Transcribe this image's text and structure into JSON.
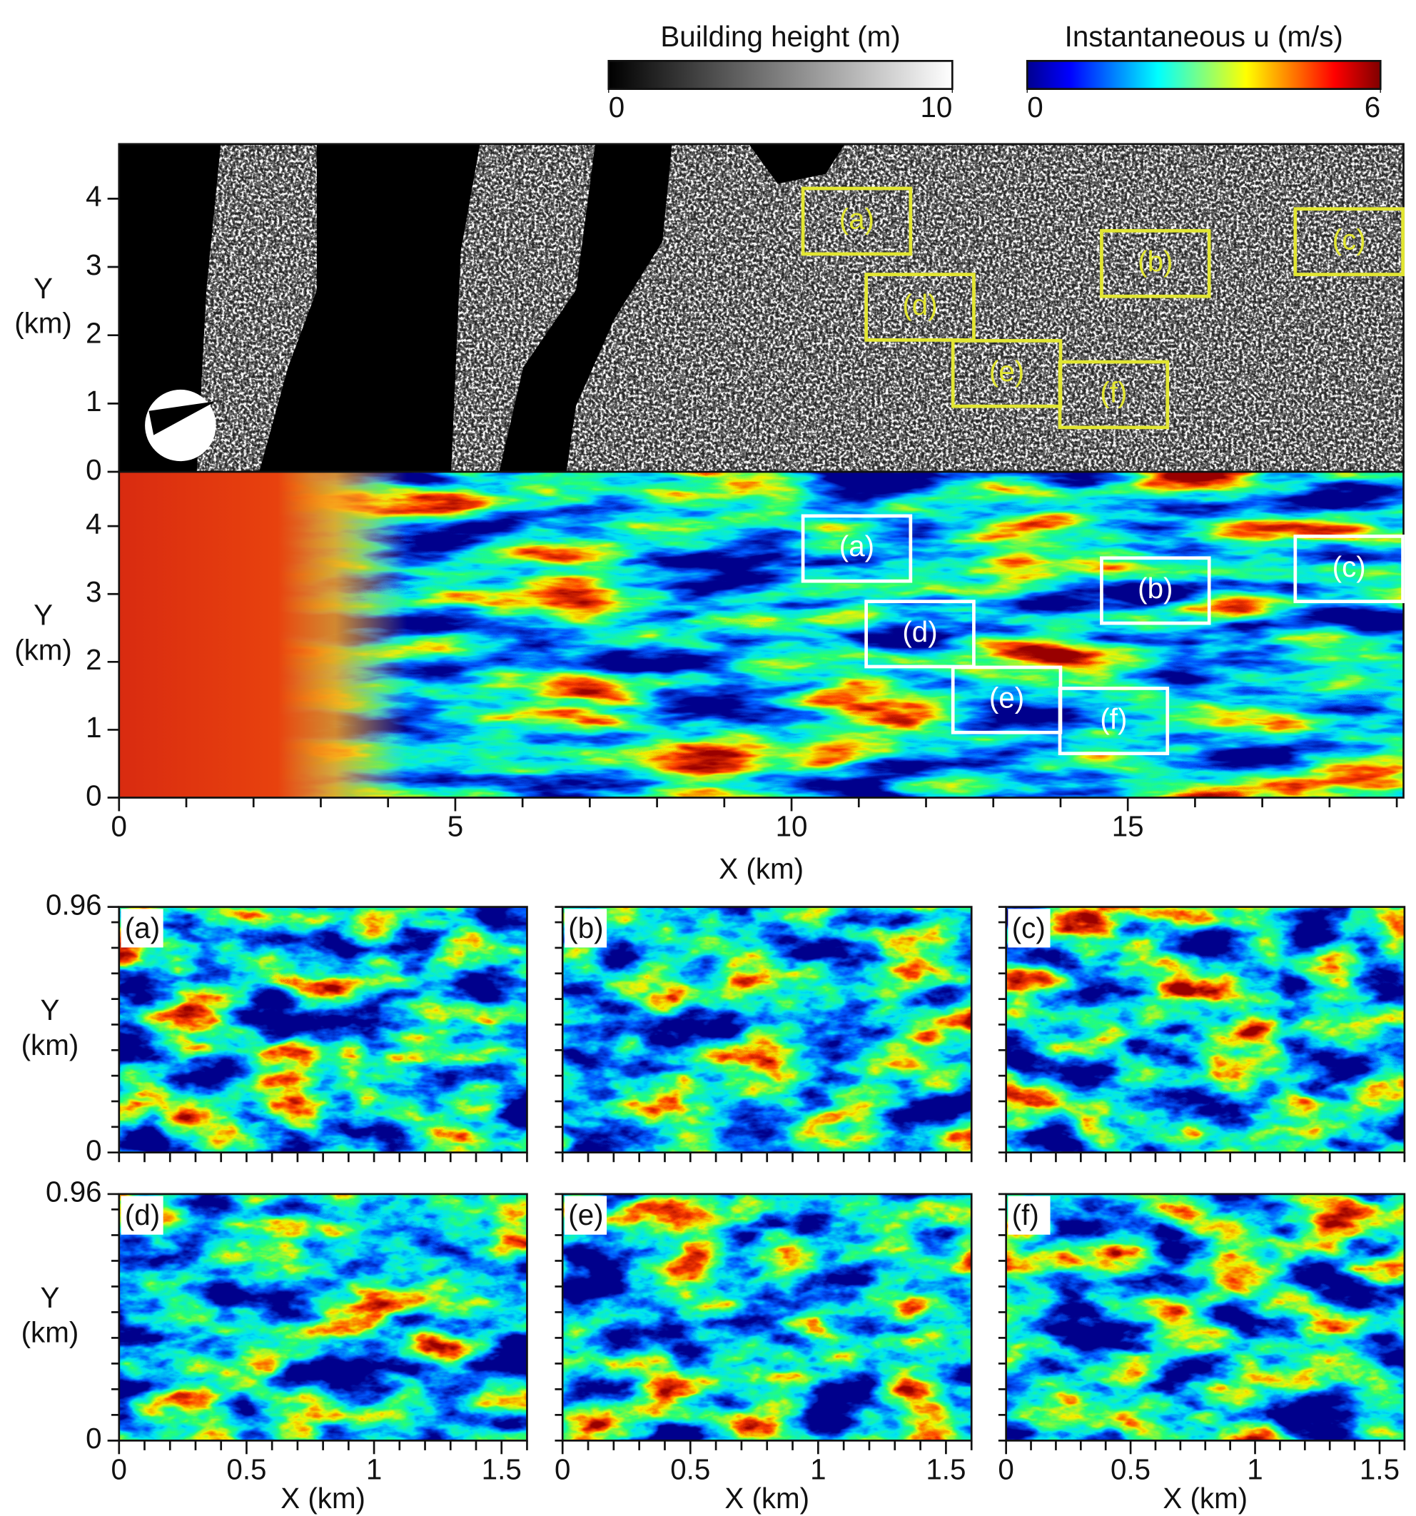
{
  "colorbars": [
    {
      "title": "Building height (m)",
      "lim": [
        0,
        10
      ],
      "ticks": [
        0,
        10
      ],
      "colormap": "gray"
    },
    {
      "title": "Instantaneous u (m/s)",
      "lim": [
        0,
        6
      ],
      "ticks": [
        0,
        6
      ],
      "colormap": "jet"
    }
  ],
  "chart_data": [
    {
      "type": "heatmap",
      "colormap": "gray",
      "ylabel": [
        "Y",
        "(km)"
      ],
      "xlim": [
        0,
        19.1
      ],
      "ylim": [
        0,
        4.8
      ],
      "yticks": [
        0,
        1,
        2,
        3,
        4
      ],
      "region_color": "#e2e632",
      "regions": [
        {
          "label": "(a)",
          "x": 10.17,
          "y": 3.19
        },
        {
          "label": "(b)",
          "x": 14.61,
          "y": 2.57
        },
        {
          "label": "(c)",
          "x": 17.49,
          "y": 2.89
        },
        {
          "label": "(d)",
          "x": 11.11,
          "y": 1.93
        },
        {
          "label": "(e)",
          "x": 12.4,
          "y": 0.96
        },
        {
          "label": "(f)",
          "x": 13.99,
          "y": 0.65
        }
      ]
    },
    {
      "type": "heatmap",
      "colormap": "jet",
      "ylabel": [
        "Y",
        "(km)"
      ],
      "xlabel": "X (km)",
      "xlim": [
        0,
        19.1
      ],
      "ylim": [
        0,
        4.8
      ],
      "yticks": [
        0,
        1,
        2,
        3,
        4
      ],
      "xticks": [
        0,
        5,
        10,
        15
      ],
      "xminorticks": [
        1,
        2,
        3,
        4,
        6,
        7,
        8,
        9,
        11,
        12,
        13,
        14,
        16,
        17,
        18,
        19
      ],
      "region_color": "#ffffff",
      "regions": [
        {
          "label": "(a)",
          "x": 10.17,
          "y": 3.19
        },
        {
          "label": "(b)",
          "x": 14.61,
          "y": 2.57
        },
        {
          "label": "(c)",
          "x": 17.49,
          "y": 2.89
        },
        {
          "label": "(d)",
          "x": 11.11,
          "y": 1.93
        },
        {
          "label": "(e)",
          "x": 12.4,
          "y": 0.96
        },
        {
          "label": "(f)",
          "x": 13.99,
          "y": 0.65
        }
      ]
    },
    {
      "type": "heatmap",
      "colormap": "jet",
      "panel_label": "(a)",
      "ylabel": [
        "Y",
        "(km)"
      ],
      "xlim": [
        0,
        1.6
      ],
      "ylim": [
        0,
        0.96
      ],
      "yticks": [
        0,
        0.96
      ],
      "yminorticks": [
        0.1,
        0.2,
        0.3,
        0.4,
        0.5,
        0.6,
        0.7,
        0.8,
        0.9
      ],
      "xminorticks": [
        0,
        0.1,
        0.2,
        0.3,
        0.4,
        0.5,
        0.6,
        0.7,
        0.8,
        0.9,
        1,
        1.1,
        1.2,
        1.3,
        1.4,
        1.5,
        1.6
      ]
    },
    {
      "type": "heatmap",
      "colormap": "jet",
      "panel_label": "(b)",
      "xlim": [
        0,
        1.6
      ],
      "ylim": [
        0,
        0.96
      ],
      "yminorticks": [
        0,
        0.1,
        0.2,
        0.3,
        0.4,
        0.5,
        0.6,
        0.7,
        0.8,
        0.9,
        0.96
      ],
      "xminorticks": [
        0,
        0.1,
        0.2,
        0.3,
        0.4,
        0.5,
        0.6,
        0.7,
        0.8,
        0.9,
        1,
        1.1,
        1.2,
        1.3,
        1.4,
        1.5,
        1.6
      ]
    },
    {
      "type": "heatmap",
      "colormap": "jet",
      "panel_label": "(c)",
      "xlim": [
        0,
        1.6
      ],
      "ylim": [
        0,
        0.96
      ],
      "yminorticks": [
        0,
        0.1,
        0.2,
        0.3,
        0.4,
        0.5,
        0.6,
        0.7,
        0.8,
        0.9,
        0.96
      ],
      "xminorticks": [
        0,
        0.1,
        0.2,
        0.3,
        0.4,
        0.5,
        0.6,
        0.7,
        0.8,
        0.9,
        1,
        1.1,
        1.2,
        1.3,
        1.4,
        1.5,
        1.6
      ]
    },
    {
      "type": "heatmap",
      "colormap": "jet",
      "panel_label": "(d)",
      "ylabel": [
        "Y",
        "(km)"
      ],
      "xlabel": "X (km)",
      "xlim": [
        0,
        1.6
      ],
      "ylim": [
        0,
        0.96
      ],
      "yticks": [
        0,
        0.96
      ],
      "yminorticks": [
        0.1,
        0.2,
        0.3,
        0.4,
        0.5,
        0.6,
        0.7,
        0.8,
        0.9
      ],
      "xticks": [
        0,
        0.5,
        1,
        1.5
      ],
      "xminorticks": [
        0.1,
        0.2,
        0.3,
        0.4,
        0.6,
        0.7,
        0.8,
        0.9,
        1.1,
        1.2,
        1.3,
        1.4,
        1.6
      ]
    },
    {
      "type": "heatmap",
      "colormap": "jet",
      "panel_label": "(e)",
      "xlabel": "X (km)",
      "xlim": [
        0,
        1.6
      ],
      "ylim": [
        0,
        0.96
      ],
      "yminorticks": [
        0,
        0.1,
        0.2,
        0.3,
        0.4,
        0.5,
        0.6,
        0.7,
        0.8,
        0.9,
        0.96
      ],
      "xticks": [
        0,
        0.5,
        1,
        1.5
      ],
      "xminorticks": [
        0.1,
        0.2,
        0.3,
        0.4,
        0.6,
        0.7,
        0.8,
        0.9,
        1.1,
        1.2,
        1.3,
        1.4,
        1.6
      ]
    },
    {
      "type": "heatmap",
      "colormap": "jet",
      "panel_label": "(f)",
      "xlabel": "X (km)",
      "xlim": [
        0,
        1.6
      ],
      "ylim": [
        0,
        0.96
      ],
      "yminorticks": [
        0,
        0.1,
        0.2,
        0.3,
        0.4,
        0.5,
        0.6,
        0.7,
        0.8,
        0.9,
        0.96
      ],
      "xticks": [
        0,
        0.5,
        1,
        1.5
      ],
      "xminorticks": [
        0.1,
        0.2,
        0.3,
        0.4,
        0.6,
        0.7,
        0.8,
        0.9,
        1.1,
        1.2,
        1.3,
        1.4,
        1.6
      ]
    }
  ]
}
